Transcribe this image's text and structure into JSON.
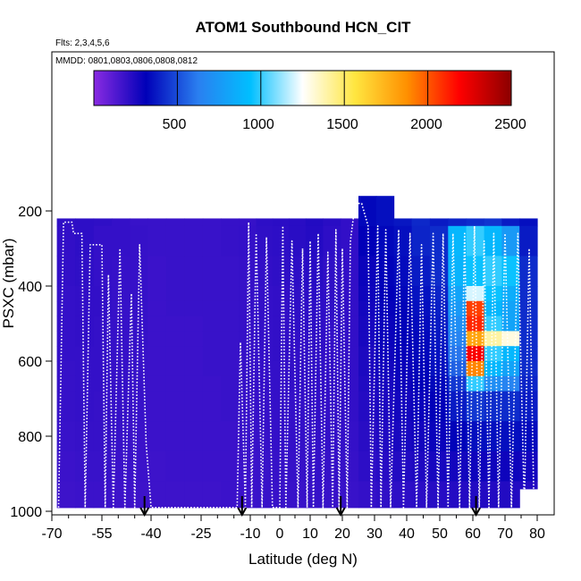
{
  "chart_data": {
    "type": "heatmap",
    "title": "ATOM1 Southbound HCN_CIT",
    "subtitle_flights": "Flts: 2,3,4,5,6",
    "subtitle_dates": "MMDD: 0801,0803,0806,0808,0812",
    "xlabel": "Latitude (deg N)",
    "ylabel": "PSXC (mbar)",
    "xlim": [
      -70,
      82
    ],
    "ylim": [
      1010,
      0
    ],
    "x_ticks": [
      -70,
      -55,
      -40,
      -25,
      -10,
      0,
      10,
      20,
      30,
      40,
      50,
      60,
      70,
      80
    ],
    "x_tick_labels": [
      "-70",
      "-55",
      "-40",
      "-25",
      "-10",
      "0",
      "10",
      "20",
      "30",
      "40",
      "50",
      "60",
      "70",
      "80"
    ],
    "x_minor_ticks": [
      -65,
      -60,
      -50,
      -45,
      -35,
      -30,
      -20,
      -15,
      -5,
      5,
      15,
      25,
      35,
      45,
      55,
      65,
      75
    ],
    "y_ticks": [
      200,
      400,
      600,
      800,
      1000
    ],
    "y_tick_labels": [
      "200",
      "400",
      "600",
      "800",
      "1000"
    ],
    "colorbar": {
      "min": 0,
      "max": 2500,
      "ticks": [
        500,
        1000,
        1500,
        2000,
        2500
      ],
      "tick_labels": [
        "500",
        "1000",
        "1500",
        "2000",
        "2500"
      ],
      "colors": [
        "#8a2be2",
        "#0000b8",
        "#2a7ff0",
        "#00bfff",
        "#ffffff",
        "#ffe640",
        "#ff9000",
        "#ff0000",
        "#8b0000"
      ]
    },
    "markers_lat": [
      -42,
      -12.5,
      19.5,
      61
    ],
    "column_edges": [
      -68.5,
      -63,
      -57.5,
      -52,
      -46.5,
      -41,
      -35.5,
      -30,
      -24.5,
      -19,
      -13.5,
      -8,
      -2.5,
      3,
      8.5,
      14,
      19.5,
      25,
      30.5,
      36,
      41.5,
      47,
      52.5,
      58,
      63.5,
      69,
      74.5,
      80
    ],
    "column_tops": [
      220,
      220,
      220,
      220,
      220,
      220,
      220,
      220,
      220,
      220,
      220,
      220,
      220,
      220,
      220,
      220,
      220,
      160,
      160,
      220,
      220,
      220,
      220,
      220,
      220,
      220,
      220
    ],
    "column_bottoms": [
      990,
      990,
      990,
      990,
      990,
      990,
      990,
      990,
      990,
      990,
      990,
      990,
      990,
      990,
      990,
      990,
      990,
      990,
      990,
      990,
      990,
      990,
      990,
      990,
      990,
      990,
      940
    ],
    "row_edges": [
      160,
      240,
      320,
      400,
      440,
      480,
      520,
      560,
      600,
      640,
      680,
      760,
      840,
      920,
      1000
    ],
    "grid_values": [
      [
        205,
        210,
        205,
        195,
        185,
        185,
        185,
        185,
        185,
        190,
        190,
        210,
        215,
        220,
        235,
        220,
        200,
        330,
        350,
        370,
        410,
        380,
        400,
        420,
        440,
        380,
        350
      ],
      [
        200,
        210,
        195,
        195,
        190,
        185,
        185,
        185,
        185,
        190,
        195,
        205,
        210,
        220,
        230,
        210,
        200,
        310,
        330,
        350,
        400,
        420,
        900,
        1000,
        900,
        750,
        380
      ],
      [
        200,
        205,
        195,
        190,
        190,
        180,
        185,
        185,
        185,
        185,
        190,
        200,
        205,
        210,
        225,
        205,
        200,
        290,
        320,
        340,
        380,
        420,
        880,
        950,
        1000,
        950,
        420
      ],
      [
        195,
        200,
        200,
        190,
        190,
        180,
        185,
        185,
        185,
        185,
        190,
        195,
        200,
        205,
        215,
        205,
        200,
        280,
        310,
        330,
        360,
        400,
        800,
        1200,
        950,
        850,
        420
      ],
      [
        195,
        200,
        200,
        190,
        190,
        180,
        185,
        185,
        185,
        185,
        190,
        195,
        200,
        205,
        210,
        205,
        200,
        270,
        300,
        320,
        350,
        390,
        750,
        2050,
        900,
        800,
        420
      ],
      [
        195,
        200,
        195,
        190,
        190,
        180,
        180,
        180,
        185,
        185,
        190,
        195,
        200,
        205,
        210,
        200,
        200,
        260,
        290,
        320,
        340,
        380,
        700,
        2100,
        1000,
        800,
        420
      ],
      [
        195,
        200,
        195,
        190,
        190,
        180,
        180,
        180,
        185,
        185,
        190,
        195,
        200,
        200,
        205,
        200,
        200,
        260,
        290,
        310,
        330,
        370,
        650,
        1800,
        1400,
        1300,
        420
      ],
      [
        195,
        195,
        195,
        190,
        185,
        180,
        180,
        180,
        185,
        185,
        190,
        195,
        200,
        200,
        205,
        200,
        200,
        250,
        280,
        300,
        330,
        360,
        600,
        2200,
        1000,
        900,
        420
      ],
      [
        190,
        195,
        195,
        190,
        185,
        180,
        180,
        180,
        185,
        185,
        190,
        195,
        195,
        200,
        205,
        200,
        200,
        250,
        270,
        290,
        320,
        350,
        550,
        1900,
        900,
        800,
        420
      ],
      [
        190,
        195,
        195,
        190,
        185,
        180,
        180,
        180,
        180,
        185,
        190,
        195,
        195,
        200,
        200,
        200,
        200,
        240,
        260,
        280,
        310,
        330,
        450,
        1000,
        700,
        650,
        400
      ],
      [
        190,
        195,
        190,
        190,
        185,
        180,
        180,
        180,
        180,
        185,
        185,
        190,
        195,
        195,
        200,
        195,
        200,
        230,
        250,
        270,
        290,
        310,
        380,
        450,
        420,
        420,
        380
      ],
      [
        185,
        190,
        190,
        185,
        180,
        180,
        180,
        180,
        180,
        180,
        185,
        190,
        195,
        195,
        195,
        195,
        195,
        220,
        240,
        255,
        270,
        290,
        320,
        350,
        350,
        350,
        340
      ],
      [
        180,
        185,
        185,
        180,
        180,
        175,
        180,
        180,
        180,
        180,
        180,
        185,
        190,
        190,
        195,
        190,
        190,
        210,
        225,
        235,
        245,
        260,
        270,
        280,
        280,
        280,
        270
      ],
      [
        175,
        180,
        180,
        175,
        175,
        175,
        175,
        175,
        175,
        180,
        180,
        185,
        185,
        185,
        190,
        185,
        185,
        195,
        205,
        210,
        215,
        225,
        230,
        235,
        235,
        235,
        230
      ]
    ],
    "flight_track": [
      [
        -68,
        990
      ],
      [
        -66.5,
        230
      ],
      [
        -64,
        230
      ],
      [
        -63.5,
        260
      ],
      [
        -61,
        260
      ],
      [
        -60,
        990
      ],
      [
        -58.5,
        290
      ],
      [
        -55,
        290
      ],
      [
        -54,
        990
      ],
      [
        -53,
        370
      ],
      [
        -51.5,
        990
      ],
      [
        -49.5,
        300
      ],
      [
        -48,
        990
      ],
      [
        -46,
        420
      ],
      [
        -45,
        990
      ],
      [
        -43.5,
        290
      ],
      [
        -41.5,
        820
      ],
      [
        -40,
        990
      ],
      [
        -14,
        990
      ],
      [
        -13,
        550
      ],
      [
        -11.5,
        990
      ],
      [
        -10.5,
        230
      ],
      [
        -9.5,
        990
      ],
      [
        -8,
        260
      ],
      [
        -6,
        990
      ],
      [
        -4.5,
        270
      ],
      [
        -2.5,
        990
      ],
      [
        0,
        990
      ],
      [
        1,
        240
      ],
      [
        2,
        990
      ],
      [
        4,
        280
      ],
      [
        6,
        990
      ],
      [
        7.5,
        300
      ],
      [
        9,
        990
      ],
      [
        10,
        280
      ],
      [
        11,
        990
      ],
      [
        12.5,
        260
      ],
      [
        14,
        990
      ],
      [
        15.5,
        310
      ],
      [
        17,
        990
      ],
      [
        18,
        250
      ],
      [
        19,
        990
      ],
      [
        20,
        300
      ],
      [
        21.5,
        990
      ],
      [
        22.5,
        280
      ],
      [
        24,
        180
      ],
      [
        26,
        180
      ],
      [
        28,
        240
      ],
      [
        29,
        990
      ],
      [
        31,
        240
      ],
      [
        32,
        990
      ],
      [
        33.5,
        250
      ],
      [
        35,
        990
      ],
      [
        37.5,
        250
      ],
      [
        39,
        990
      ],
      [
        41,
        260
      ],
      [
        43,
        990
      ],
      [
        44.5,
        290
      ],
      [
        46,
        990
      ],
      [
        48,
        260
      ],
      [
        49.5,
        990
      ],
      [
        51,
        260
      ],
      [
        52.5,
        990
      ],
      [
        54,
        260
      ],
      [
        56,
        990
      ],
      [
        57.5,
        260
      ],
      [
        59,
        990
      ],
      [
        60.5,
        240
      ],
      [
        62,
        990
      ],
      [
        63.5,
        280
      ],
      [
        65,
        990
      ],
      [
        66.5,
        260
      ],
      [
        68,
        990
      ],
      [
        70,
        260
      ],
      [
        72,
        990
      ],
      [
        74,
        260
      ],
      [
        76,
        990
      ],
      [
        77.5,
        300
      ],
      [
        79,
        990
      ]
    ]
  }
}
